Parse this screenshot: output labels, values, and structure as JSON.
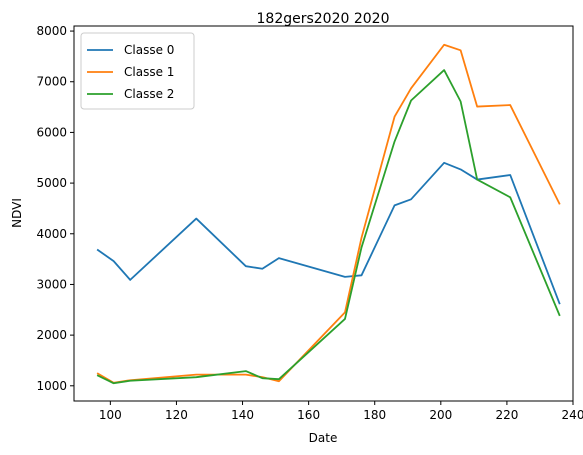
{
  "chart_data": {
    "type": "line",
    "title": "182gers2020 2020",
    "xlabel": "Date",
    "ylabel": "NDVI",
    "xlim": [
      89,
      240
    ],
    "ylim": [
      700,
      8100
    ],
    "xticks": [
      100,
      120,
      140,
      160,
      180,
      200,
      220,
      240
    ],
    "yticks": [
      1000,
      2000,
      3000,
      4000,
      5000,
      6000,
      7000,
      8000
    ],
    "grid": false,
    "legend_position": "top-left",
    "series": [
      {
        "name": "Classe 0",
        "color": "#1f77b4",
        "points": [
          [
            96,
            3690
          ],
          [
            101,
            3460
          ],
          [
            106,
            3090
          ],
          [
            126,
            4300
          ],
          [
            141,
            3360
          ],
          [
            146,
            3310
          ],
          [
            151,
            3520
          ],
          [
            171,
            3150
          ],
          [
            176,
            3180
          ],
          [
            186,
            4560
          ],
          [
            191,
            4680
          ],
          [
            201,
            5400
          ],
          [
            206,
            5270
          ],
          [
            211,
            5070
          ],
          [
            221,
            5160
          ],
          [
            236,
            2610
          ]
        ]
      },
      {
        "name": "Classe 1",
        "color": "#ff7f0e",
        "points": [
          [
            96,
            1250
          ],
          [
            101,
            1060
          ],
          [
            106,
            1110
          ],
          [
            126,
            1220
          ],
          [
            141,
            1220
          ],
          [
            146,
            1170
          ],
          [
            151,
            1090
          ],
          [
            171,
            2450
          ],
          [
            176,
            3920
          ],
          [
            186,
            6310
          ],
          [
            191,
            6870
          ],
          [
            201,
            7730
          ],
          [
            206,
            7620
          ],
          [
            211,
            6510
          ],
          [
            221,
            6540
          ],
          [
            236,
            4580
          ]
        ]
      },
      {
        "name": "Classe 2",
        "color": "#2ca02c",
        "points": [
          [
            96,
            1210
          ],
          [
            101,
            1050
          ],
          [
            106,
            1100
          ],
          [
            126,
            1170
          ],
          [
            141,
            1290
          ],
          [
            146,
            1150
          ],
          [
            151,
            1130
          ],
          [
            171,
            2320
          ],
          [
            176,
            3730
          ],
          [
            186,
            5820
          ],
          [
            191,
            6630
          ],
          [
            201,
            7230
          ],
          [
            206,
            6610
          ],
          [
            211,
            5070
          ],
          [
            221,
            4720
          ],
          [
            236,
            2380
          ]
        ]
      }
    ]
  }
}
